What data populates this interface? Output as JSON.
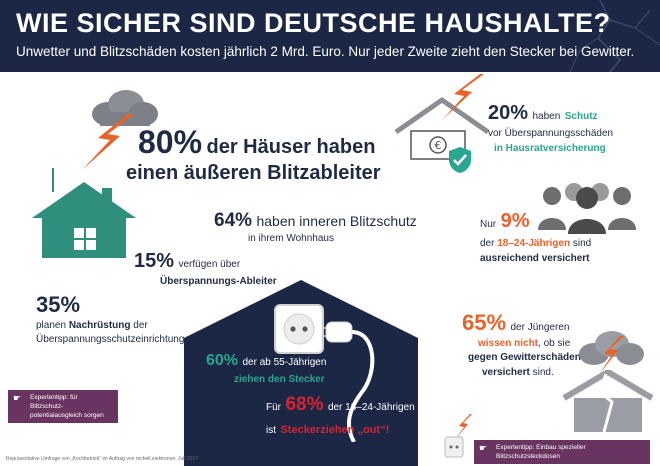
{
  "header": {
    "title": "WIE SICHER SIND DEUTSCHE HAUSHALTE?",
    "subtitle": "Unwetter und Blitzschäden kosten jährlich 2 Mrd. Euro. Nur jeder Zweite zieht den Stecker bei Gewitter."
  },
  "stats": {
    "outer": {
      "pct": "80%",
      "line1": "der Häuser haben",
      "line2": "einen äußeren Blitzableiter"
    },
    "inner": {
      "pct": "64%",
      "text": "haben inneren Blitzschutz",
      "sub": "in ihrem Wohnhaus"
    },
    "surge": {
      "pct": "15%",
      "text": "verfügen über",
      "sub": "Überspannungs-Ableiter"
    },
    "retrofit": {
      "pct": "35%",
      "line1": "planen",
      "line1_bold": "Nachrüstung",
      "line1_end": "der",
      "line2": "Überspannungsschutzeinrichtung"
    },
    "insurance": {
      "pct": "20%",
      "text": "haben",
      "text_green": "Schutz",
      "line2": "vor Überspannungsschäden",
      "line3": "in Hausratversicherung"
    },
    "young_insured": {
      "prefix": "Nur",
      "pct": "9%",
      "line1_end": "",
      "line2_pre": "der",
      "line2_bold": "18–24-Jährigen",
      "line2_end": "sind",
      "line3": "ausreichend versichert"
    },
    "unplug_old": {
      "pct": "60%",
      "text": "der ab 55-Jährigen",
      "line2": "ziehen den Stecker"
    },
    "unplug_young": {
      "pre": "Für",
      "pct": "68%",
      "text": "der 18–24-Jährigen",
      "line2_pre": "ist",
      "line2_bold": "Steckerziehen „out“!"
    },
    "unknown": {
      "pct": "65%",
      "text": "der Jüngeren",
      "line2_bold": "wissen nicht,",
      "line2_end": "ob sie",
      "line3": "gegen Gewitterschäden",
      "line4_bold": "versichert",
      "line4_end": "sind."
    }
  },
  "tips": {
    "left": {
      "line1": "Expertentipp: für Blitzschutz-",
      "line2": "potentialausgleich sorgen"
    },
    "right": {
      "text": "Expertentipp: Einbau spezieller Blitzschutzsteckdosen"
    }
  },
  "footnote": "Repräsentative Umfrage von „Kochbetrieb“ im Auftrag von rechell.eiektronen, Juli 2017",
  "colors": {
    "navy": "#1c2746",
    "orange": "#e8632b",
    "green": "#2aa58f",
    "red": "#d6232f",
    "purple": "#6a3461",
    "house_green": "#2f8f7c"
  },
  "icons": [
    "lightning-bolt-icon",
    "cloud-icon",
    "house-icon",
    "roof-icon",
    "euro-note-icon",
    "shield-check-icon",
    "people-icon",
    "socket-icon",
    "plug-icon",
    "broken-house-icon",
    "hand-pointer-icon"
  ]
}
